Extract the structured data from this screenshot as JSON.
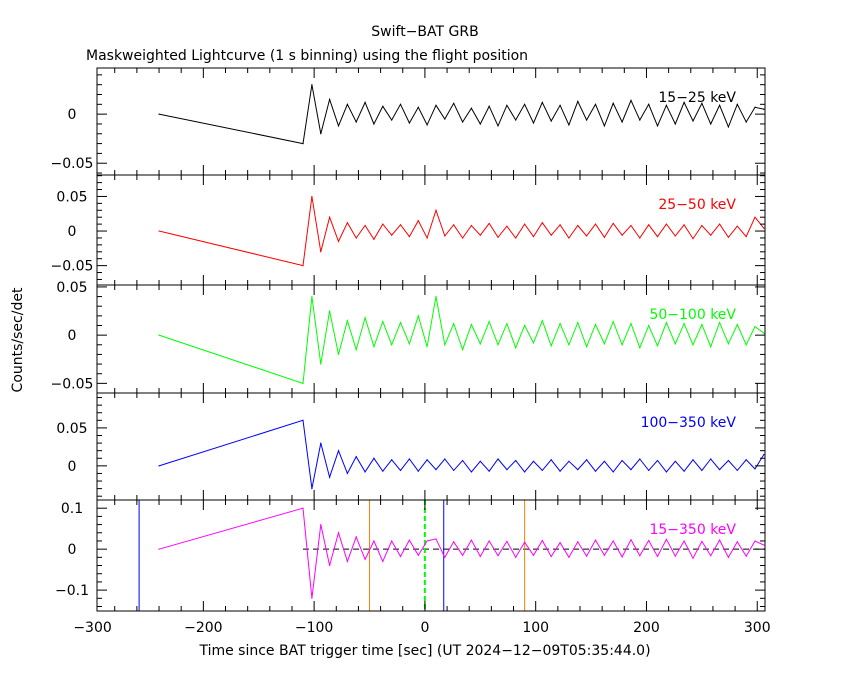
{
  "chart_data": {
    "type": "line",
    "title": "Swift−BAT GRB",
    "subtitle": "Maskweighted Lightcurve (1 s binning) using the flight position",
    "xlabel": "Time since BAT trigger time [sec] (UT 2024−12−09T05:35:44.0)",
    "ylabel": "Counts/sec/det",
    "xlim": [
      -296,
      307
    ],
    "x_ticks": [
      -300,
      -200,
      -100,
      0,
      100,
      200,
      300
    ],
    "x_tick_labels": [
      "−300",
      "−200",
      "−100",
      "0",
      "100",
      "200",
      "300"
    ],
    "grid": false,
    "x": [
      -240,
      -110,
      -102,
      -94,
      -86,
      -78,
      -70,
      -62,
      -54,
      -46,
      -38,
      -30,
      -22,
      -14,
      -6,
      2,
      10,
      18,
      26,
      34,
      42,
      50,
      58,
      66,
      74,
      82,
      90,
      98,
      106,
      114,
      122,
      130,
      138,
      146,
      154,
      162,
      170,
      178,
      186,
      194,
      202,
      210,
      218,
      226,
      234,
      242,
      250,
      258,
      266,
      274,
      282,
      290,
      298,
      306
    ],
    "panels": [
      {
        "name": "15−25 keV",
        "color": "#000000",
        "ylim": [
          -0.062,
          0.047
        ],
        "y_ticks": [
          0,
          -0.05
        ],
        "y_tick_labels": [
          "0",
          "−0.05"
        ],
        "values": [
          0,
          -0.03,
          0.03,
          -0.02,
          0.015,
          -0.012,
          0.01,
          -0.008,
          0.012,
          -0.01,
          0.008,
          -0.006,
          0.01,
          -0.009,
          0.007,
          -0.011,
          0.009,
          -0.005,
          0.011,
          -0.008,
          0.006,
          -0.01,
          0.008,
          -0.012,
          0.009,
          -0.006,
          0.01,
          -0.009,
          0.012,
          -0.007,
          0.009,
          -0.011,
          0.013,
          -0.006,
          0.01,
          -0.012,
          0.011,
          -0.008,
          0.014,
          -0.006,
          0.01,
          -0.012,
          0.009,
          -0.01,
          0.012,
          -0.007,
          0.011,
          -0.01,
          0.009,
          -0.013,
          0.01,
          -0.008,
          0.007,
          0.005
        ]
      },
      {
        "name": "25−50 keV",
        "color": "#ff0000",
        "ylim": [
          -0.078,
          0.081
        ],
        "y_ticks": [
          0.05,
          0,
          -0.05
        ],
        "y_tick_labels": [
          "0.05",
          "0",
          "−0.05"
        ],
        "values": [
          0,
          -0.05,
          0.05,
          -0.03,
          0.02,
          -0.015,
          0.012,
          -0.01,
          0.008,
          -0.012,
          0.01,
          -0.006,
          0.009,
          -0.008,
          0.015,
          -0.01,
          0.03,
          -0.007,
          0.009,
          -0.01,
          0.008,
          -0.006,
          0.011,
          -0.009,
          0.007,
          -0.01,
          0.01,
          -0.008,
          0.012,
          -0.006,
          0.009,
          -0.01,
          0.008,
          -0.007,
          0.01,
          -0.009,
          0.011,
          -0.006,
          0.008,
          -0.01,
          0.009,
          -0.008,
          0.01,
          -0.007,
          0.009,
          -0.011,
          0.008,
          -0.006,
          0.01,
          -0.009,
          0.007,
          -0.008,
          0.02,
          0.004
        ]
      },
      {
        "name": "50−100 keV",
        "color": "#00ff00",
        "ylim": [
          -0.06,
          0.052
        ],
        "y_ticks": [
          0.05,
          0,
          -0.05
        ],
        "y_tick_labels": [
          "0.05",
          "0",
          "−0.05"
        ],
        "values": [
          0,
          -0.05,
          0.04,
          -0.03,
          0.025,
          -0.02,
          0.015,
          -0.015,
          0.018,
          -0.012,
          0.014,
          -0.01,
          0.013,
          -0.009,
          0.02,
          -0.012,
          0.04,
          -0.01,
          0.012,
          -0.015,
          0.011,
          -0.009,
          0.014,
          -0.01,
          0.012,
          -0.013,
          0.01,
          -0.008,
          0.015,
          -0.011,
          0.012,
          -0.01,
          0.013,
          -0.012,
          0.011,
          -0.009,
          0.014,
          -0.01,
          0.012,
          -0.013,
          0.01,
          -0.011,
          0.013,
          -0.009,
          0.012,
          -0.01,
          0.011,
          -0.012,
          0.013,
          -0.009,
          0.011,
          -0.01,
          0.009,
          0.002
        ]
      },
      {
        "name": "100−350 keV",
        "color": "#0000ff",
        "ylim": [
          -0.045,
          0.096
        ],
        "y_ticks": [
          0.05,
          0
        ],
        "y_tick_labels": [
          "0.05",
          "0"
        ],
        "values": [
          0,
          0.06,
          -0.03,
          0.03,
          -0.015,
          0.02,
          -0.01,
          0.012,
          -0.008,
          0.01,
          -0.007,
          0.008,
          -0.006,
          0.009,
          -0.007,
          0.008,
          -0.005,
          0.009,
          -0.006,
          0.007,
          -0.008,
          0.006,
          -0.007,
          0.009,
          -0.005,
          0.007,
          -0.008,
          0.006,
          -0.006,
          0.008,
          -0.007,
          0.006,
          -0.005,
          0.008,
          -0.007,
          0.006,
          -0.008,
          0.007,
          -0.005,
          0.009,
          -0.006,
          0.007,
          -0.008,
          0.006,
          -0.007,
          0.008,
          -0.006,
          0.009,
          -0.005,
          0.007,
          -0.006,
          0.008,
          -0.004,
          0.015
        ]
      },
      {
        "name": "15−350 keV",
        "color": "#ff00ff",
        "ylim": [
          -0.151,
          0.12
        ],
        "y_ticks": [
          0.1,
          0,
          -0.1
        ],
        "y_tick_labels": [
          "0.1",
          "0",
          "−0.1"
        ],
        "values": [
          0,
          0.1,
          -0.12,
          0.06,
          -0.04,
          0.04,
          -0.03,
          0.03,
          -0.025,
          0.02,
          -0.03,
          0.02,
          -0.018,
          0.022,
          -0.015,
          0.02,
          0.025,
          -0.02,
          0.018,
          -0.015,
          0.022,
          -0.018,
          0.02,
          -0.016,
          0.019,
          -0.02,
          0.017,
          -0.015,
          0.021,
          -0.018,
          0.016,
          -0.02,
          0.018,
          -0.017,
          0.022,
          -0.015,
          0.02,
          -0.019,
          0.023,
          -0.016,
          0.021,
          -0.018,
          0.024,
          -0.017,
          0.02,
          -0.022,
          0.019,
          -0.016,
          0.022,
          -0.02,
          0.018,
          -0.017,
          0.02,
          0.01
        ],
        "zero_line": "dashed",
        "markers": [
          {
            "x": -258,
            "color": "#0000ff",
            "style": "solid"
          },
          {
            "x": -50,
            "color": "#ff8000",
            "style": "solid"
          },
          {
            "x": 0,
            "color": "#00ff00",
            "style": "dashed"
          },
          {
            "x": 17,
            "color": "#0000ff",
            "style": "solid"
          },
          {
            "x": 90,
            "color": "#ff8000",
            "style": "solid"
          }
        ]
      }
    ]
  }
}
